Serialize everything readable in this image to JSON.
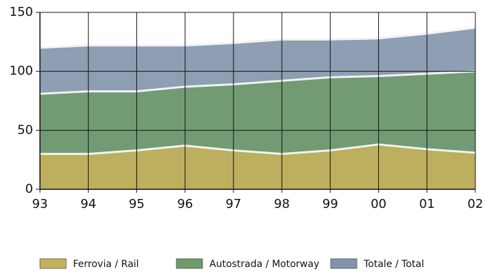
{
  "chart_data": {
    "type": "area",
    "categories": [
      "93",
      "94",
      "95",
      "96",
      "97",
      "98",
      "99",
      "00",
      "01",
      "02"
    ],
    "series": [
      {
        "name": "Totale / Total",
        "color": "#8294ab",
        "values": [
          120,
          122,
          122,
          122,
          124,
          127,
          127,
          128,
          132,
          137
        ]
      },
      {
        "name": "Autostrada / Motorway",
        "color": "#6f9a6c",
        "values": [
          81,
          83,
          83,
          87,
          89,
          92,
          95,
          96,
          98,
          100
        ]
      },
      {
        "name": "Ferrovia / Rail",
        "color": "#c4b15c",
        "values": [
          30,
          30,
          33,
          37,
          33,
          30,
          33,
          38,
          34,
          31
        ]
      }
    ],
    "ylim": [
      0,
      150
    ],
    "yticks": [
      0,
      50,
      100,
      150
    ],
    "grid": true,
    "legend": "bottom"
  }
}
